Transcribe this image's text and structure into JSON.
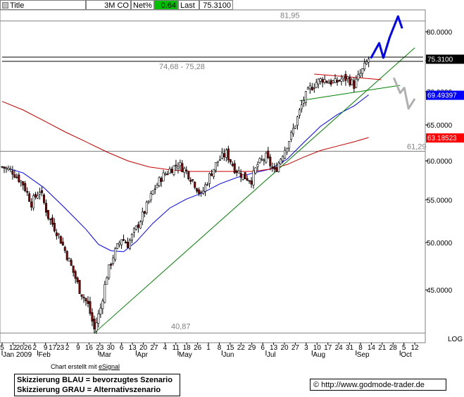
{
  "header": {
    "title_label": "Title",
    "symbol": "3M CO",
    "change_label": "Net%",
    "change_value": "0.64",
    "last_label": "Last",
    "last_value": "75.3100",
    "colors": {
      "change_bg": "#00c000"
    }
  },
  "price_labels": [
    {
      "text": "75.3100",
      "bg": "#000000",
      "fg": "#ffffff"
    },
    {
      "text": "69.49397",
      "bg": "#0000ff",
      "fg": "#ffffff"
    },
    {
      "text": "63.18523",
      "bg": "#ff0000",
      "fg": "#ffffff"
    }
  ],
  "annotations": {
    "resistance": "81,95",
    "range": "74,68 - 75,28",
    "level": "61,29",
    "low": "40,87"
  },
  "scale_label": "LOG",
  "footer": {
    "credit_prefix": "Chart erstellt mit ",
    "credit_link": "eSignal",
    "legend_blue": "Skizzierung BLAU = bevorzugtes Szenario",
    "legend_gray": "Skizzierung GRAU = Alternativszenario",
    "copyright_symbol": "©",
    "url": "http://www.godmode-trader.de"
  },
  "chart_data": {
    "type": "candlestick",
    "y_scale": "log",
    "ylim": [
      40.0,
      84.0
    ],
    "y_ticks": [
      "80.0000",
      "75.0000",
      "70.0000",
      "65.0000",
      "60.0000",
      "55.0000",
      "50.0000",
      "45.0000"
    ],
    "y_tick_values": [
      80,
      75,
      70,
      65,
      60,
      55,
      50,
      45
    ],
    "x_day_labels": [
      "5",
      "12",
      "2026",
      "2",
      "9",
      "1723",
      "2",
      "9",
      "16",
      "23",
      "30",
      "6",
      "13",
      "20",
      "27",
      "4",
      "11",
      "18",
      "26",
      "1",
      "8",
      "15",
      "22",
      "29",
      "6",
      "13",
      "20",
      "27",
      "3",
      "10",
      "17",
      "24",
      "31",
      "8",
      "14",
      "21",
      "28",
      "5",
      "12"
    ],
    "x_month_labels": [
      "Jan 2009",
      "Feb",
      "Mar",
      "Apr",
      "May",
      "Jun",
      "Jul",
      "Aug",
      "Sep",
      "Oct"
    ],
    "x_month_day_index": [
      0,
      17,
      46,
      64,
      84,
      105,
      126,
      148,
      169,
      190
    ],
    "x_days_total": 201,
    "price_path": [
      [
        0,
        59.2
      ],
      [
        5,
        58.6
      ],
      [
        10,
        57.0
      ],
      [
        14,
        54.6
      ],
      [
        18,
        56.2
      ],
      [
        22,
        53.0
      ],
      [
        27,
        50.8
      ],
      [
        32,
        48.0
      ],
      [
        37,
        45.0
      ],
      [
        41,
        43.5
      ],
      [
        44,
        41.2
      ],
      [
        47,
        43.2
      ],
      [
        50,
        46.5
      ],
      [
        53,
        48.5
      ],
      [
        57,
        50.5
      ],
      [
        60,
        49.8
      ],
      [
        64,
        51.6
      ],
      [
        68,
        53.6
      ],
      [
        72,
        56.0
      ],
      [
        76,
        57.8
      ],
      [
        80,
        58.8
      ],
      [
        84,
        59.6
      ],
      [
        88,
        58.6
      ],
      [
        92,
        57.0
      ],
      [
        95,
        55.5
      ],
      [
        99,
        58.0
      ],
      [
        103,
        60.0
      ],
      [
        107,
        61.0
      ],
      [
        111,
        59.0
      ],
      [
        115,
        58.0
      ],
      [
        119,
        57.5
      ],
      [
        122,
        59.5
      ],
      [
        126,
        60.5
      ],
      [
        130,
        58.5
      ],
      [
        134,
        61.0
      ],
      [
        138,
        63.5
      ],
      [
        141,
        66.0
      ],
      [
        144,
        68.8
      ],
      [
        147,
        70.5
      ],
      [
        150,
        71.5
      ],
      [
        153,
        72.0
      ],
      [
        156,
        71.6
      ],
      [
        159,
        71.4
      ],
      [
        162,
        72.0
      ],
      [
        165,
        72.1
      ],
      [
        168,
        71.0
      ],
      [
        171,
        72.8
      ],
      [
        173,
        74.0
      ],
      [
        175,
        75.3
      ]
    ],
    "series": [
      {
        "name": "",
        "color": "#0000ff",
        "values_xy": [
          [
            0,
            59.2
          ],
          [
            10,
            58.4
          ],
          [
            20,
            56.5
          ],
          [
            30,
            54.0
          ],
          [
            40,
            51.5
          ],
          [
            46,
            49.8
          ],
          [
            52,
            49.1
          ],
          [
            58,
            49.0
          ],
          [
            64,
            50.1
          ],
          [
            72,
            52.2
          ],
          [
            80,
            54.0
          ],
          [
            88,
            55.1
          ],
          [
            96,
            55.9
          ],
          [
            104,
            57.0
          ],
          [
            112,
            57.8
          ],
          [
            120,
            58.4
          ],
          [
            128,
            58.9
          ],
          [
            136,
            60.2
          ],
          [
            144,
            62.5
          ],
          [
            152,
            64.8
          ],
          [
            160,
            66.5
          ],
          [
            168,
            67.8
          ],
          [
            175,
            69.5
          ]
        ]
      },
      {
        "name": "",
        "color": "#cc0000",
        "values_xy": [
          [
            0,
            68.5
          ],
          [
            10,
            67.2
          ],
          [
            20,
            65.6
          ],
          [
            30,
            64.0
          ],
          [
            40,
            62.6
          ],
          [
            50,
            61.2
          ],
          [
            60,
            60.0
          ],
          [
            70,
            59.2
          ],
          [
            80,
            58.8
          ],
          [
            90,
            58.6
          ],
          [
            100,
            58.6
          ],
          [
            110,
            58.6
          ],
          [
            120,
            58.6
          ],
          [
            128,
            58.9
          ],
          [
            136,
            59.5
          ],
          [
            144,
            60.5
          ],
          [
            152,
            61.4
          ],
          [
            160,
            62.0
          ],
          [
            168,
            62.6
          ],
          [
            175,
            63.2
          ]
        ]
      }
    ],
    "trend_lines": [
      {
        "color": "#008000",
        "from": [
          44,
          40.87
        ],
        "to": [
          197,
          77.2
        ]
      },
      {
        "color": "#008000",
        "from": [
          142,
          68.6
        ],
        "to": [
          190,
          71.0
        ]
      },
      {
        "color": "#cc0000",
        "from": [
          149,
          72.8
        ],
        "to": [
          181,
          71.9
        ]
      },
      {
        "color": "#000000",
        "from": [
          0,
          75.6
        ],
        "to": [
          201,
          75.6
        ]
      },
      {
        "color": "#000000",
        "from": [
          0,
          74.9
        ],
        "to": [
          201,
          74.9
        ]
      }
    ],
    "horizontal_lines": [
      {
        "value": 81.95,
        "color": "#808080"
      },
      {
        "value": 61.29,
        "color": "#808080"
      },
      {
        "value": 40.87,
        "color": "#808080"
      }
    ],
    "scenario_blue": [
      [
        176,
        75.4
      ],
      [
        180,
        78.0
      ],
      [
        182,
        75.5
      ],
      [
        185,
        79.0
      ],
      [
        189,
        82.8
      ],
      [
        191,
        80.6
      ]
    ],
    "scenario_gray": [
      [
        187,
        72.2
      ],
      [
        190,
        69.8
      ],
      [
        192,
        70.6
      ],
      [
        194,
        67.4
      ],
      [
        197,
        68.9
      ]
    ]
  }
}
